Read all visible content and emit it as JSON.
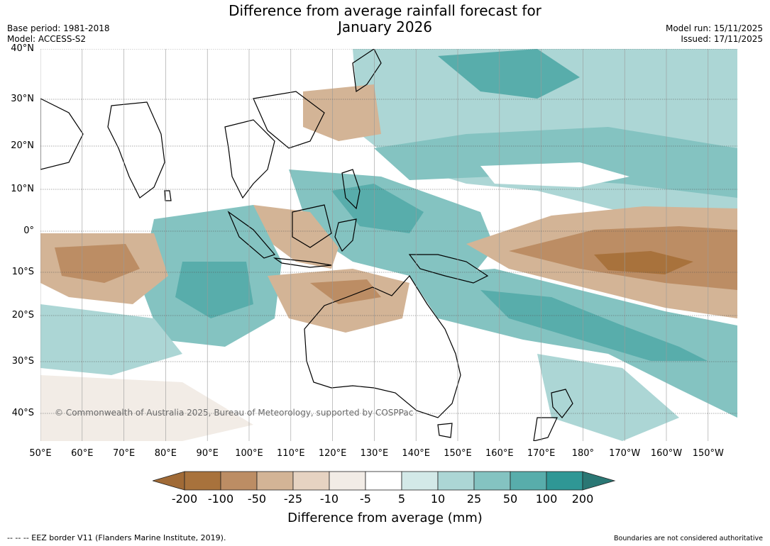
{
  "title": {
    "line1": "Difference from average rainfall forecast for",
    "line2": "January 2026"
  },
  "meta": {
    "base_period": "Base period: 1981-2018",
    "model": "Model: ACCESS-S2",
    "model_run": "Model run: 15/11/2025",
    "issued": "Issued: 17/11/2025"
  },
  "map": {
    "region": "Indian Ocean – Australia – western Pacific",
    "latitude_labels": [
      "40°N",
      "30°N",
      "20°N",
      "10°N",
      "0°",
      "10°S",
      "20°S",
      "30°S",
      "40°S"
    ],
    "longitude_labels": [
      "50°E",
      "60°E",
      "70°E",
      "80°E",
      "90°E",
      "100°E",
      "110°E",
      "120°E",
      "130°E",
      "140°E",
      "150°E",
      "160°E",
      "170°E",
      "180°",
      "170°W",
      "160°W",
      "150°W"
    ],
    "copyright": "© Commonwealth of Australia 2025, Bureau of Meteorology, supported by COSPPac"
  },
  "colorbar": {
    "title": "Difference from average (mm)",
    "labels": [
      "-200",
      "-100",
      "-50",
      "-25",
      "-10",
      "-5",
      "5",
      "10",
      "25",
      "50",
      "100",
      "200"
    ],
    "colors": [
      "#a06a36",
      "#a8723c",
      "#bc8d64",
      "#d3b496",
      "#e6d3c2",
      "#f2ece6",
      "#ffffff",
      "#d3e9e8",
      "#acd6d5",
      "#84c3c1",
      "#58adab",
      "#2f9795",
      "#2a7774"
    ]
  },
  "footer": {
    "eez": "--  --  -- EEZ border V11 (Flanders Marine Institute, 2019).",
    "disclaimer": "Boundaries are not considered authoritative"
  }
}
